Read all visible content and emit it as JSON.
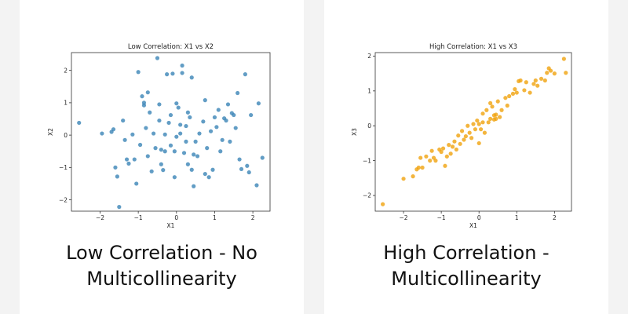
{
  "colors": {
    "page_background": "#f3f3f3",
    "card_background": "#ffffff",
    "low_point": "#3b84b7",
    "high_point": "#f0a20e"
  },
  "panels": [
    {
      "caption_line1": "Low Correlation - No",
      "caption_line2": "Multicollinearity"
    },
    {
      "caption_line1": "High Correlation -",
      "caption_line2": "Multicollinearity"
    }
  ],
  "chart_data": [
    {
      "type": "scatter",
      "title": "Low Correlation: X1 vs X2",
      "xlabel": "X1",
      "ylabel": "X2",
      "xlim": [
        -2.75,
        2.45
      ],
      "ylim": [
        -2.35,
        2.55
      ],
      "xticks": [
        -2,
        -1,
        0,
        1,
        2
      ],
      "yticks": [
        -2,
        -1,
        0,
        1,
        2
      ],
      "xtick_labels": [
        "−2",
        "−1",
        "0",
        "1",
        "2"
      ],
      "ytick_labels": [
        "−2",
        "−1",
        "0",
        "1",
        "2"
      ],
      "grid": false,
      "color": "#3b84b7",
      "points": [
        [
          -2.55,
          0.38
        ],
        [
          -1.95,
          0.05
        ],
        [
          -1.7,
          0.1
        ],
        [
          -1.65,
          0.18
        ],
        [
          -1.6,
          -1.0
        ],
        [
          -1.55,
          -1.28
        ],
        [
          -1.5,
          -2.22
        ],
        [
          -1.4,
          0.45
        ],
        [
          -1.35,
          -0.15
        ],
        [
          -1.3,
          -0.75
        ],
        [
          -1.25,
          -0.88
        ],
        [
          -1.15,
          0.02
        ],
        [
          -1.1,
          -0.75
        ],
        [
          -1.05,
          -1.5
        ],
        [
          -1.0,
          1.95
        ],
        [
          -0.95,
          -0.3
        ],
        [
          -0.9,
          1.2
        ],
        [
          -0.85,
          0.92
        ],
        [
          -0.85,
          1.0
        ],
        [
          -0.8,
          0.22
        ],
        [
          -0.75,
          1.32
        ],
        [
          -0.75,
          -0.65
        ],
        [
          -0.7,
          0.7
        ],
        [
          -0.65,
          -1.12
        ],
        [
          -0.6,
          0.05
        ],
        [
          -0.55,
          -0.4
        ],
        [
          -0.5,
          2.38
        ],
        [
          -0.45,
          0.95
        ],
        [
          -0.45,
          0.45
        ],
        [
          -0.4,
          -0.45
        ],
        [
          -0.4,
          -0.9
        ],
        [
          -0.35,
          -1.08
        ],
        [
          -0.3,
          -0.5
        ],
        [
          -0.3,
          0.02
        ],
        [
          -0.25,
          1.88
        ],
        [
          -0.2,
          0.38
        ],
        [
          -0.15,
          0.62
        ],
        [
          -0.15,
          -0.32
        ],
        [
          -0.1,
          1.9
        ],
        [
          -0.05,
          -0.5
        ],
        [
          -0.05,
          -1.3
        ],
        [
          0.0,
          0.98
        ],
        [
          0.0,
          -0.05
        ],
        [
          0.05,
          0.85
        ],
        [
          0.1,
          0.32
        ],
        [
          0.1,
          0.05
        ],
        [
          0.15,
          1.92
        ],
        [
          0.15,
          2.15
        ],
        [
          0.2,
          -0.55
        ],
        [
          0.25,
          -0.2
        ],
        [
          0.25,
          0.28
        ],
        [
          0.3,
          -0.9
        ],
        [
          0.3,
          0.7
        ],
        [
          0.35,
          0.55
        ],
        [
          0.4,
          1.78
        ],
        [
          0.4,
          -1.07
        ],
        [
          0.45,
          -0.6
        ],
        [
          0.45,
          -1.58
        ],
        [
          0.5,
          -0.2
        ],
        [
          0.55,
          -0.65
        ],
        [
          0.6,
          0.05
        ],
        [
          0.7,
          0.42
        ],
        [
          0.75,
          1.08
        ],
        [
          0.75,
          -1.2
        ],
        [
          0.8,
          -0.4
        ],
        [
          0.85,
          -1.3
        ],
        [
          0.9,
          0.12
        ],
        [
          0.95,
          -1.07
        ],
        [
          1.0,
          0.55
        ],
        [
          1.05,
          0.25
        ],
        [
          1.1,
          0.78
        ],
        [
          1.15,
          -0.5
        ],
        [
          1.2,
          -0.15
        ],
        [
          1.25,
          0.52
        ],
        [
          1.3,
          0.45
        ],
        [
          1.35,
          0.95
        ],
        [
          1.4,
          -0.2
        ],
        [
          1.45,
          0.68
        ],
        [
          1.5,
          0.62
        ],
        [
          1.55,
          0.22
        ],
        [
          1.6,
          1.3
        ],
        [
          1.65,
          -0.75
        ],
        [
          1.7,
          -1.05
        ],
        [
          1.8,
          1.88
        ],
        [
          1.85,
          -0.95
        ],
        [
          1.9,
          -1.15
        ],
        [
          1.95,
          0.62
        ],
        [
          2.1,
          -1.55
        ],
        [
          2.15,
          0.98
        ],
        [
          2.25,
          -0.7
        ]
      ]
    },
    {
      "type": "scatter",
      "title": "High Correlation: X1 vs X3",
      "xlabel": "X1",
      "ylabel": "X3",
      "xlim": [
        -2.75,
        2.45
      ],
      "ylim": [
        -2.45,
        2.1
      ],
      "xticks": [
        -2,
        -1,
        0,
        1,
        2
      ],
      "yticks": [
        -2,
        -1,
        0,
        1,
        2
      ],
      "xtick_labels": [
        "−2",
        "−1",
        "0",
        "1",
        "2"
      ],
      "ytick_labels": [
        "−2",
        "−1",
        "0",
        "1",
        "2"
      ],
      "grid": false,
      "color": "#f0a20e",
      "points": [
        [
          -2.55,
          -2.25
        ],
        [
          -2.0,
          -1.52
        ],
        [
          -1.75,
          -1.45
        ],
        [
          -1.65,
          -1.25
        ],
        [
          -1.6,
          -1.2
        ],
        [
          -1.55,
          -0.92
        ],
        [
          -1.5,
          -1.2
        ],
        [
          -1.4,
          -0.88
        ],
        [
          -1.3,
          -1.0
        ],
        [
          -1.25,
          -0.72
        ],
        [
          -1.2,
          -0.92
        ],
        [
          -1.15,
          -1.0
        ],
        [
          -1.05,
          -0.68
        ],
        [
          -1.0,
          -0.75
        ],
        [
          -0.95,
          -0.65
        ],
        [
          -0.9,
          -1.15
        ],
        [
          -0.85,
          -0.88
        ],
        [
          -0.8,
          -0.55
        ],
        [
          -0.75,
          -0.8
        ],
        [
          -0.7,
          -0.6
        ],
        [
          -0.65,
          -0.45
        ],
        [
          -0.6,
          -0.68
        ],
        [
          -0.55,
          -0.28
        ],
        [
          -0.5,
          -0.52
        ],
        [
          -0.45,
          -0.15
        ],
        [
          -0.4,
          -0.4
        ],
        [
          -0.35,
          -0.3
        ],
        [
          -0.3,
          0.0
        ],
        [
          -0.25,
          -0.2
        ],
        [
          -0.2,
          -0.35
        ],
        [
          -0.15,
          0.05
        ],
        [
          -0.1,
          -0.1
        ],
        [
          -0.05,
          0.15
        ],
        [
          0.0,
          -0.5
        ],
        [
          0.0,
          0.05
        ],
        [
          0.05,
          -0.1
        ],
        [
          0.1,
          0.1
        ],
        [
          0.1,
          0.35
        ],
        [
          0.15,
          -0.2
        ],
        [
          0.2,
          0.45
        ],
        [
          0.25,
          0.1
        ],
        [
          0.3,
          0.2
        ],
        [
          0.3,
          0.65
        ],
        [
          0.35,
          0.55
        ],
        [
          0.4,
          0.18
        ],
        [
          0.4,
          0.3
        ],
        [
          0.45,
          0.2
        ],
        [
          0.45,
          0.32
        ],
        [
          0.5,
          0.7
        ],
        [
          0.55,
          0.25
        ],
        [
          0.6,
          0.45
        ],
        [
          0.7,
          0.8
        ],
        [
          0.75,
          0.58
        ],
        [
          0.8,
          0.85
        ],
        [
          0.9,
          0.92
        ],
        [
          0.95,
          1.05
        ],
        [
          1.0,
          0.95
        ],
        [
          1.05,
          1.28
        ],
        [
          1.1,
          1.3
        ],
        [
          1.2,
          1.02
        ],
        [
          1.25,
          1.25
        ],
        [
          1.35,
          0.95
        ],
        [
          1.45,
          1.2
        ],
        [
          1.5,
          1.3
        ],
        [
          1.55,
          1.15
        ],
        [
          1.65,
          1.35
        ],
        [
          1.75,
          1.3
        ],
        [
          1.8,
          1.52
        ],
        [
          1.85,
          1.65
        ],
        [
          1.9,
          1.58
        ],
        [
          2.0,
          1.5
        ],
        [
          2.25,
          1.92
        ],
        [
          2.3,
          1.52
        ]
      ]
    }
  ]
}
